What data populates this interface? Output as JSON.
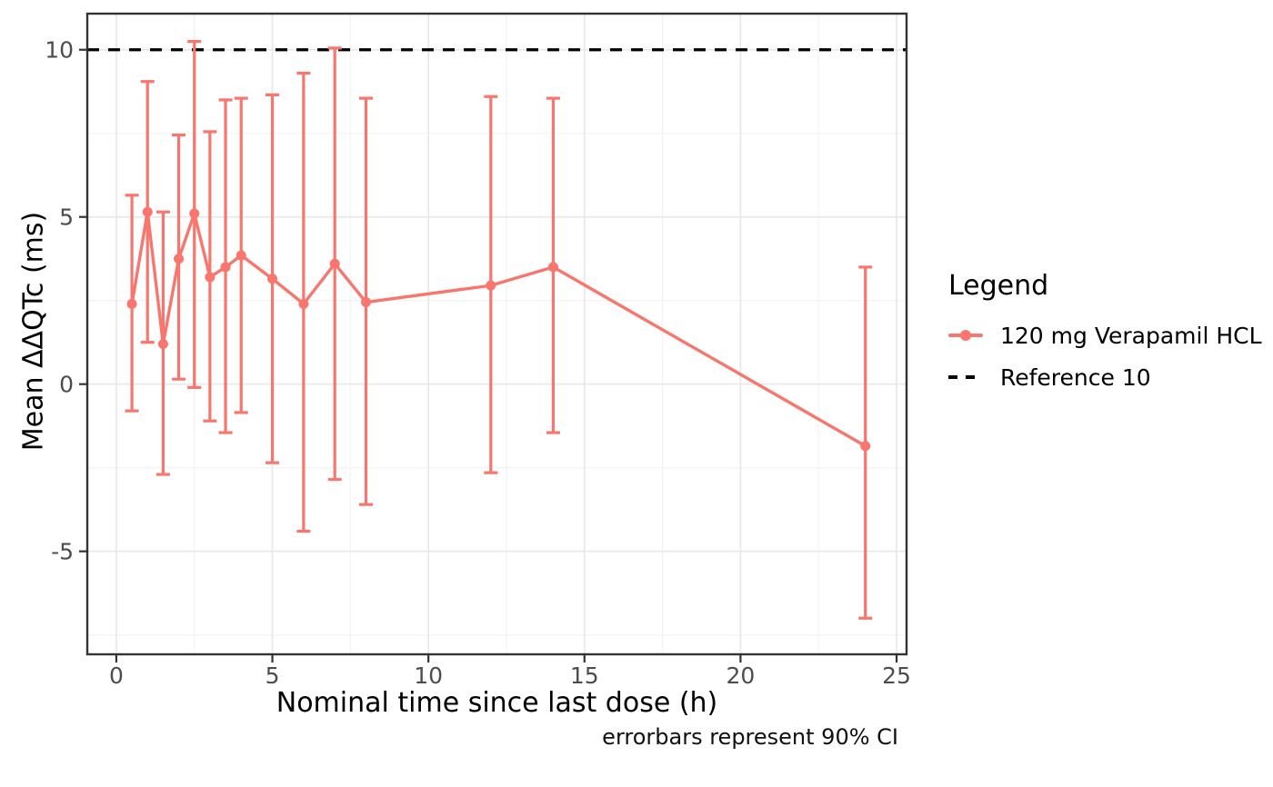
{
  "chart_data": {
    "type": "line",
    "xlabel": "Nominal time since last dose (h)",
    "ylabel": "Mean ΔΔQTc (ms)",
    "caption": "errorbars represent 90% CI",
    "x_ticks": [
      0,
      5,
      10,
      15,
      20,
      25
    ],
    "x_minor_ticks": [
      2.5,
      7.5,
      12.5,
      17.5,
      22.5
    ],
    "y_ticks": [
      -5,
      0,
      5,
      10
    ],
    "y_minor_ticks": [
      -7.5,
      -2.5,
      2.5,
      7.5
    ],
    "xlim": [
      -0.93,
      25.32
    ],
    "ylim": [
      -8.08,
      11.08
    ],
    "grid": true,
    "legend_position": "right",
    "reference_line": {
      "y": 10,
      "style": "dashed",
      "color": "#000000"
    },
    "series": [
      {
        "name": "120 mg Verapamil HCL",
        "color": "#F8766D",
        "errorbar_meaning": "90% CI",
        "points": [
          {
            "x": 0.5,
            "y": 2.4,
            "lo": -0.8,
            "hi": 5.65
          },
          {
            "x": 1,
            "y": 5.15,
            "lo": 1.25,
            "hi": 9.05
          },
          {
            "x": 1.5,
            "y": 1.2,
            "lo": -2.7,
            "hi": 5.15
          },
          {
            "x": 2,
            "y": 3.75,
            "lo": 0.15,
            "hi": 7.45
          },
          {
            "x": 2.5,
            "y": 5.1,
            "lo": -0.1,
            "hi": 10.25
          },
          {
            "x": 3,
            "y": 3.2,
            "lo": -1.1,
            "hi": 7.55
          },
          {
            "x": 3.5,
            "y": 3.5,
            "lo": -1.45,
            "hi": 8.5
          },
          {
            "x": 4,
            "y": 3.85,
            "lo": -0.85,
            "hi": 8.55
          },
          {
            "x": 5,
            "y": 3.15,
            "lo": -2.35,
            "hi": 8.65
          },
          {
            "x": 6,
            "y": 2.4,
            "lo": -4.4,
            "hi": 9.3
          },
          {
            "x": 7,
            "y": 3.6,
            "lo": -2.85,
            "hi": 10.05
          },
          {
            "x": 8,
            "y": 2.45,
            "lo": -3.6,
            "hi": 8.55
          },
          {
            "x": 12,
            "y": 2.95,
            "lo": -2.65,
            "hi": 8.6
          },
          {
            "x": 14,
            "y": 3.5,
            "lo": -1.45,
            "hi": 8.55
          },
          {
            "x": 24,
            "y": -1.85,
            "lo": -7.0,
            "hi": 3.5
          }
        ]
      }
    ]
  },
  "legend": {
    "title": "Legend",
    "items": [
      {
        "label": "120 mg Verapamil HCL",
        "type": "line-point",
        "color": "#F8766D"
      },
      {
        "label": "Reference 10",
        "type": "dashed-line",
        "color": "#000000"
      }
    ]
  },
  "colors": {
    "series": "#F8766D",
    "reference": "#000000",
    "tick_label": "#4D4D4D",
    "panel_border": "#333333",
    "grid_major": "#E8E8E8",
    "grid_minor": "#F4F4F4"
  }
}
